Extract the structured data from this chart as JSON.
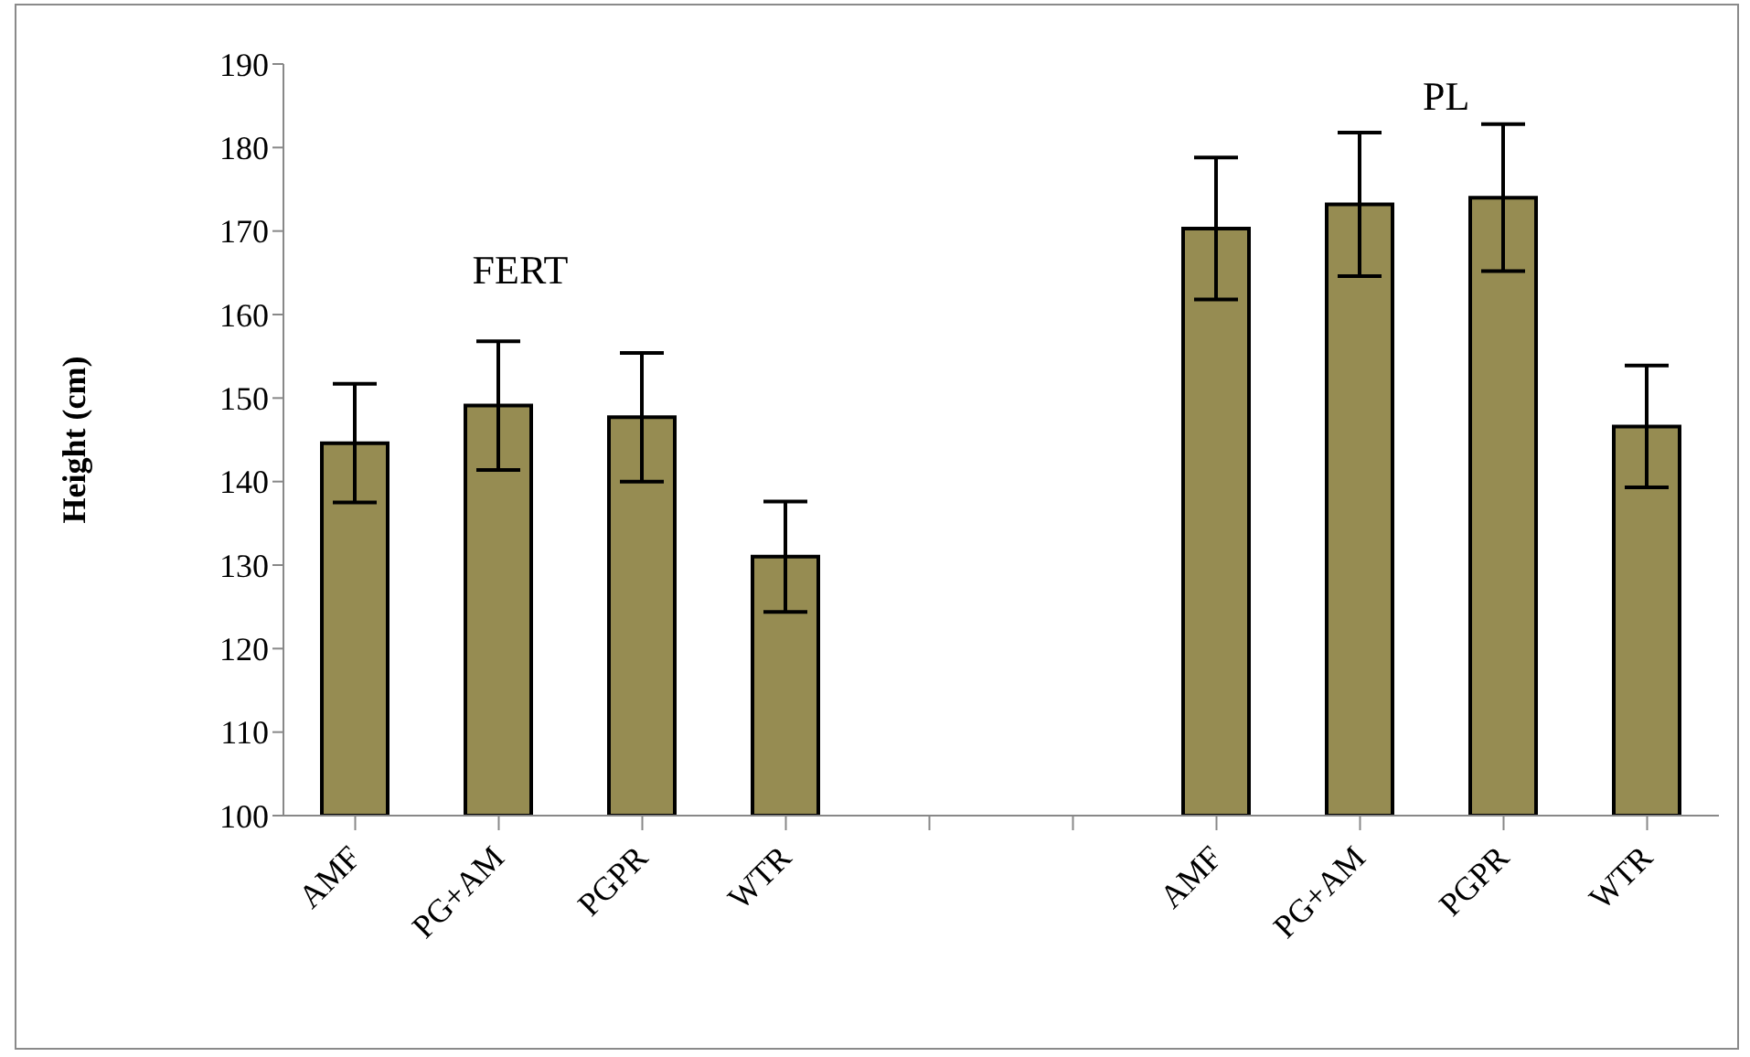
{
  "chart_data": {
    "type": "bar",
    "ylabel": "Height (cm)",
    "categories": [
      "AMF",
      "PG+AM",
      "PGPR",
      "WTR",
      null,
      null,
      "AMF",
      "PG+AM",
      "PGPR",
      "WTR"
    ],
    "values": [
      144.6,
      149.1,
      147.7,
      131.0,
      null,
      null,
      170.3,
      173.2,
      174.0,
      146.6
    ],
    "errors": [
      7.1,
      7.7,
      7.7,
      6.6,
      null,
      null,
      8.5,
      8.6,
      8.8,
      7.3
    ],
    "color": "#968c52",
    "ylim": [
      100,
      190
    ],
    "yticks": [
      100,
      110,
      120,
      130,
      140,
      150,
      160,
      170,
      180,
      190
    ],
    "grid": false,
    "annotations": [
      "FERT",
      "PL"
    ]
  }
}
